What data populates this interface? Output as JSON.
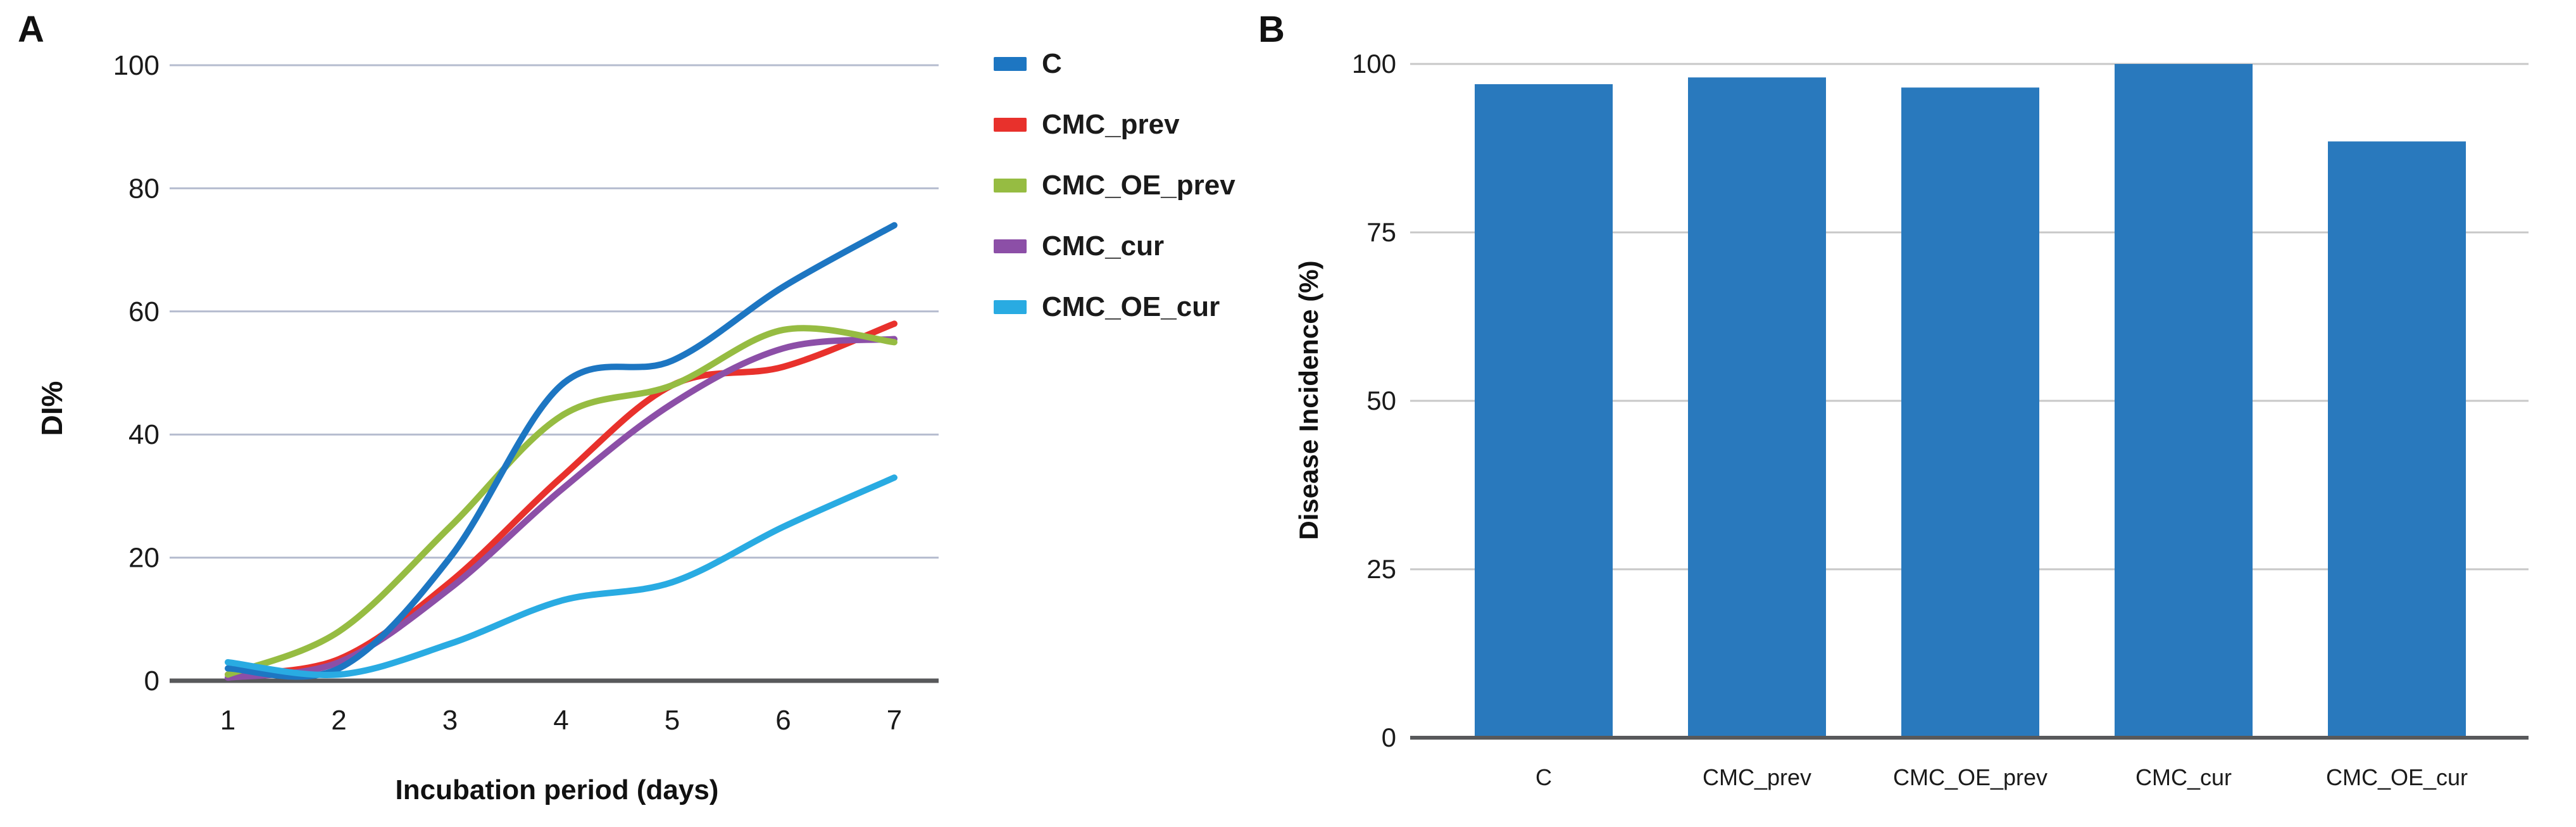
{
  "figure": {
    "background": "#ffffff",
    "text_color": "#1a1a1a",
    "axis_line_color": "#58595b",
    "panel_a_gridline_color": "#b5bccf",
    "panel_b_gridline_color": "#c8c8c8"
  },
  "panels": {
    "a": {
      "letter": "A"
    },
    "b": {
      "letter": "B"
    }
  },
  "chart_data": [
    {
      "type": "line",
      "panel": "A",
      "title": "",
      "xlabel": "Incubation period (days)",
      "ylabel": "DI%",
      "x": [
        1,
        2,
        3,
        4,
        5,
        6,
        7
      ],
      "xticks": [
        "1",
        "2",
        "3",
        "4",
        "5",
        "6",
        "7"
      ],
      "ylim": [
        0,
        100
      ],
      "yticks": [
        0,
        20,
        40,
        60,
        80,
        100
      ],
      "grid": true,
      "line_style": "smooth",
      "legend_position": "right",
      "series": [
        {
          "name": "C",
          "color": "#1d76c2",
          "values": [
            2,
            2,
            20,
            48,
            52,
            64,
            74
          ]
        },
        {
          "name": "CMC_prev",
          "color": "#e8312c",
          "values": [
            1,
            3.5,
            16,
            33,
            48,
            51,
            58
          ]
        },
        {
          "name": "CMC_OE_prev",
          "color": "#96bc42",
          "values": [
            1,
            8,
            25,
            43,
            48,
            57,
            55
          ]
        },
        {
          "name": "CMC_cur",
          "color": "#8c4fa7",
          "values": [
            0.5,
            3,
            15,
            31,
            45,
            54,
            55.5
          ]
        },
        {
          "name": "CMC_OE_cur",
          "color": "#29abe2",
          "values": [
            3,
            1,
            6,
            13,
            16,
            25,
            33
          ]
        }
      ]
    },
    {
      "type": "bar",
      "panel": "B",
      "title": "",
      "xlabel": "",
      "ylabel": "Disease Incidence (%)",
      "categories": [
        "C",
        "CMC_prev",
        "CMC_OE_prev",
        "CMC_cur",
        "CMC_OE_cur"
      ],
      "values": [
        97,
        98,
        96.5,
        100,
        88.5
      ],
      "bar_color": "#2979bd",
      "ylim": [
        0,
        100
      ],
      "yticks": [
        0,
        25,
        50,
        75,
        100
      ],
      "grid": true,
      "legend_position": "none"
    }
  ]
}
